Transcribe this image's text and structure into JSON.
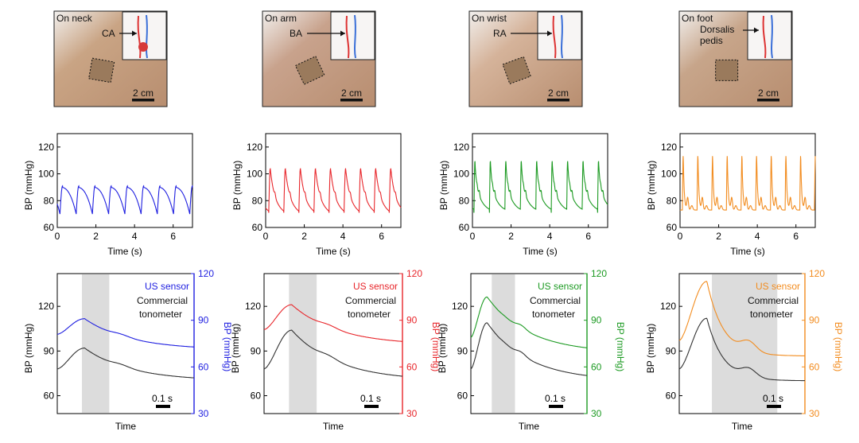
{
  "panels": [
    {
      "photo_label": "On neck",
      "artery_label": "CA",
      "scale_bar_label": "2 cm",
      "color": "#1f1fe0",
      "skin_color": "#c9a484",
      "time_plot": {
        "ylabel": "BP (mmHg)",
        "xlabel": "Time (s)",
        "yticks": [
          "60",
          "80",
          "100",
          "120"
        ],
        "xticks": [
          "0",
          "2",
          "4",
          "6"
        ],
        "ylim": [
          60,
          130
        ],
        "xlim": [
          0,
          7
        ],
        "beats": [
          0.14,
          0.98,
          1.82,
          2.66,
          3.5,
          4.34,
          5.18,
          6.02
        ],
        "min": 70,
        "max": 91,
        "shape": "rounded"
      },
      "overlay_plot": {
        "us_label": "US sensor",
        "ref_label1": "Commercial",
        "ref_label2": "tonometer",
        "ylabel_left": "BP (mmHg)",
        "ylabel_right": "BP (mmHg)",
        "xlabel": "Time",
        "yticks_left": [
          "60",
          "90",
          "120"
        ],
        "yticks_right": [
          "30",
          "60",
          "90",
          "120"
        ],
        "ylim_left": [
          48,
          142
        ],
        "ylim_right": [
          30,
          120
        ],
        "scale_label": "0.1 s"
      }
    },
    {
      "photo_label": "On arm",
      "artery_label": "BA",
      "scale_bar_label": "2 cm",
      "color": "#e8262b",
      "skin_color": "#c8a28c",
      "time_plot": {
        "ylabel": "BP (mmHg)",
        "xlabel": "Time (s)",
        "yticks": [
          "60",
          "80",
          "100",
          "120"
        ],
        "xticks": [
          "0",
          "2",
          "4",
          "6"
        ],
        "ylim": [
          60,
          130
        ],
        "xlim": [
          0,
          7
        ],
        "beats": [
          0.16,
          0.94,
          1.72,
          2.5,
          3.28,
          4.06,
          4.84,
          5.62,
          6.4
        ],
        "min": 71,
        "max": 104,
        "shape": "sharp"
      },
      "overlay_plot": {
        "us_label": "US sensor",
        "ref_label1": "Commercial",
        "ref_label2": "tonometer",
        "ylabel_left": "BP (mmHg)",
        "ylabel_right": "BP (mmHg)",
        "xlabel": "Time",
        "yticks_left": [
          "60",
          "90",
          "120"
        ],
        "yticks_right": [
          "30",
          "60",
          "90",
          "120"
        ],
        "ylim_left": [
          48,
          142
        ],
        "ylim_right": [
          30,
          120
        ],
        "scale_label": "0.1 s"
      }
    },
    {
      "photo_label": "On wrist",
      "artery_label": "RA",
      "scale_bar_label": "2 cm",
      "color": "#1c9a22",
      "skin_color": "#d5b39a",
      "time_plot": {
        "ylabel": "BP (mmHg)",
        "xlabel": "Time (s)",
        "yticks": [
          "60",
          "80",
          "100",
          "120"
        ],
        "xticks": [
          "0",
          "2",
          "4",
          "6"
        ],
        "ylim": [
          60,
          130
        ],
        "xlim": [
          0,
          7
        ],
        "beats": [
          0.08,
          0.88,
          1.68,
          2.48,
          3.28,
          4.08,
          4.88,
          5.68,
          6.48
        ],
        "min": 71,
        "max": 110,
        "shape": "notched"
      },
      "overlay_plot": {
        "us_label": "US sensor",
        "ref_label1": "Commercial",
        "ref_label2": "tonometer",
        "ylabel_left": "BP (mmHg)",
        "ylabel_right": "BP (mmHg)",
        "xlabel": "Time",
        "yticks_left": [
          "60",
          "90",
          "120"
        ],
        "yticks_right": [
          "30",
          "60",
          "90",
          "120"
        ],
        "ylim_left": [
          48,
          142
        ],
        "ylim_right": [
          30,
          120
        ],
        "scale_label": "0.1 s"
      }
    },
    {
      "photo_label": "On foot",
      "artery_label1": "Dorsalis",
      "artery_label2": "pedis",
      "scale_bar_label": "2 cm",
      "color": "#f28c1f",
      "skin_color": "#c7a58a",
      "time_plot": {
        "ylabel": "BP (mmHg)",
        "xlabel": "Time (s)",
        "yticks": [
          "60",
          "80",
          "100",
          "120"
        ],
        "xticks": [
          "0",
          "2",
          "4",
          "6"
        ],
        "ylim": [
          60,
          130
        ],
        "xlim": [
          0,
          7
        ],
        "beats": [
          0.12,
          0.88,
          1.64,
          2.4,
          3.16,
          3.92,
          4.68,
          5.44,
          6.2
        ],
        "min": 73,
        "max": 114,
        "shape": "spike"
      },
      "overlay_plot": {
        "us_label": "US sensor",
        "ref_label1": "Commercial",
        "ref_label2": "tonometer",
        "ylabel_left": "BP (mmHg)",
        "ylabel_right": "BP (mmHg)",
        "xlabel": "Time",
        "yticks_left": [
          "60",
          "90",
          "120"
        ],
        "yticks_right": [
          "30",
          "60",
          "90",
          "120"
        ],
        "ylim_left": [
          48,
          142
        ],
        "ylim_right": [
          30,
          120
        ],
        "scale_label": "0.1 s"
      }
    }
  ],
  "chart_data": [
    {
      "type": "line",
      "panel": "neck",
      "series": [
        {
          "name": "",
          "values": [
            70,
            91,
            70,
            91,
            70,
            91,
            70,
            91,
            70,
            91,
            70,
            91,
            70,
            91,
            70,
            91,
            70
          ]
        }
      ],
      "x": [
        0,
        0.2,
        0.8,
        1.0,
        1.6,
        1.8,
        2.5,
        2.7,
        3.3,
        3.5,
        4.2,
        4.4,
        5.0,
        5.2,
        5.8,
        6.0,
        6.8
      ],
      "xlabel": "Time (s)",
      "ylabel": "BP (mmHg)",
      "ylim": [
        60,
        130
      ],
      "xlim": [
        0,
        7
      ]
    },
    {
      "type": "line",
      "panel": "arm",
      "series": [
        {
          "name": "",
          "values": [
            71,
            104,
            71,
            104,
            71,
            104,
            71,
            104,
            71,
            104,
            71,
            104,
            71,
            104,
            71,
            104,
            71,
            104,
            71
          ]
        }
      ],
      "xlabel": "Time (s)",
      "ylabel": "BP (mmHg)",
      "ylim": [
        60,
        130
      ],
      "xlim": [
        0,
        7
      ]
    },
    {
      "type": "line",
      "panel": "wrist",
      "series": [
        {
          "name": "",
          "values": [
            71,
            110,
            71,
            110,
            71,
            110,
            71,
            110,
            71,
            110,
            71,
            110,
            71,
            110,
            71,
            110,
            71,
            110,
            71
          ]
        }
      ],
      "xlabel": "Time (s)",
      "ylabel": "BP (mmHg)",
      "ylim": [
        60,
        130
      ],
      "xlim": [
        0,
        7
      ]
    },
    {
      "type": "line",
      "panel": "foot",
      "series": [
        {
          "name": "",
          "values": [
            73,
            114,
            73,
            114,
            73,
            114,
            73,
            114,
            73,
            114,
            73,
            114,
            73,
            114,
            73,
            114,
            73,
            114,
            73
          ]
        }
      ],
      "xlabel": "Time (s)",
      "ylabel": "BP (mmHg)",
      "ylim": [
        60,
        130
      ],
      "xlim": [
        0,
        7
      ]
    },
    {
      "type": "line",
      "panel": "neck-overlay",
      "series": [
        {
          "name": "US sensor",
          "peak": 91,
          "end": 71
        },
        {
          "name": "Commercial tonometer",
          "peak": 92,
          "end": 70
        }
      ],
      "ylim_left": [
        48,
        142
      ],
      "ylim_right": [
        30,
        120
      ]
    },
    {
      "type": "line",
      "panel": "arm-overlay",
      "series": [
        {
          "name": "US sensor",
          "peak": 100,
          "end": 74
        },
        {
          "name": "Commercial tonometer",
          "peak": 104,
          "end": 70
        }
      ],
      "ylim_left": [
        48,
        142
      ],
      "ylim_right": [
        30,
        120
      ]
    },
    {
      "type": "line",
      "panel": "wrist-overlay",
      "series": [
        {
          "name": "US sensor",
          "peak": 105,
          "end": 69
        },
        {
          "name": "Commercial tonometer",
          "peak": 109,
          "end": 70
        }
      ],
      "ylim_left": [
        48,
        142
      ],
      "ylim_right": [
        30,
        120
      ]
    },
    {
      "type": "line",
      "panel": "foot-overlay",
      "series": [
        {
          "name": "US sensor",
          "peak": 115,
          "end": 67
        },
        {
          "name": "Commercial tonometer",
          "peak": 112,
          "end": 70
        }
      ],
      "ylim_left": [
        48,
        142
      ],
      "ylim_right": [
        30,
        120
      ]
    }
  ]
}
